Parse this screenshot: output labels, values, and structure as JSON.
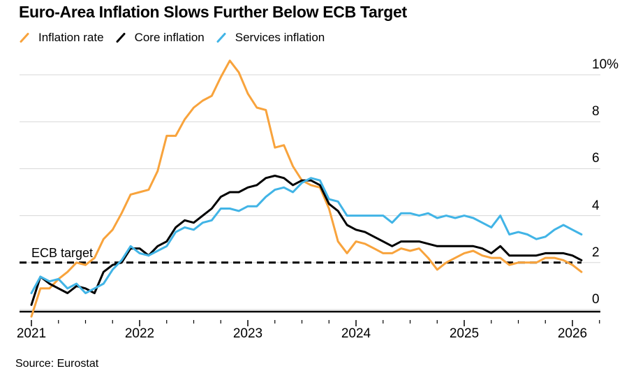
{
  "header": {
    "title": "Euro-Area Inflation Slows Further Below ECB Target"
  },
  "footer": {
    "source": "Source: Eurostat"
  },
  "chart_data": {
    "type": "line",
    "title": "Euro-Area Inflation Slows Further Below ECB Target",
    "xlabel": "",
    "ylabel": "",
    "unit": "%",
    "frequency": "monthly",
    "x_start_month": "2020-12",
    "x_end_month": "2026-01",
    "x_tick_labels": [
      "2021",
      "2022",
      "2023",
      "2024",
      "2025",
      "2026"
    ],
    "y_tick_values": [
      0,
      2,
      4,
      6,
      8,
      10
    ],
    "y_tick_labels": [
      "0",
      "2",
      "4",
      "6",
      "8",
      "10%"
    ],
    "ylim": [
      -0.5,
      10.75
    ],
    "grid": "horizontal",
    "legend_position": "top-left",
    "target_line": {
      "label": "ECB target",
      "value": 2,
      "style": "dashed",
      "color": "#000000"
    },
    "series": [
      {
        "name": "Inflation rate",
        "color": "#F8A33C",
        "values": [
          -0.3,
          0.9,
          0.9,
          1.3,
          1.6,
          2.0,
          1.9,
          2.2,
          3.0,
          3.4,
          4.1,
          4.9,
          5.0,
          5.1,
          5.9,
          7.4,
          7.4,
          8.1,
          8.6,
          8.9,
          9.1,
          9.9,
          10.6,
          10.1,
          9.2,
          8.6,
          8.5,
          6.9,
          7.0,
          6.1,
          5.5,
          5.3,
          5.2,
          4.3,
          2.9,
          2.4,
          2.9,
          2.8,
          2.6,
          2.4,
          2.4,
          2.6,
          2.5,
          2.6,
          2.2,
          1.7,
          2.0,
          2.2,
          2.4,
          2.5,
          2.3,
          2.2,
          2.2,
          1.9,
          2.0,
          2.0,
          2.0,
          2.2,
          2.2,
          2.1,
          1.9,
          1.6
        ]
      },
      {
        "name": "Core inflation",
        "color": "#000000",
        "values": [
          0.2,
          1.4,
          1.1,
          0.9,
          0.7,
          1.0,
          0.9,
          0.7,
          1.6,
          1.9,
          2.0,
          2.6,
          2.6,
          2.3,
          2.7,
          2.9,
          3.5,
          3.8,
          3.7,
          4.0,
          4.3,
          4.8,
          5.0,
          5.0,
          5.2,
          5.3,
          5.6,
          5.7,
          5.6,
          5.3,
          5.5,
          5.5,
          5.3,
          4.5,
          4.2,
          3.6,
          3.4,
          3.3,
          3.1,
          2.9,
          2.7,
          2.9,
          2.9,
          2.9,
          2.8,
          2.7,
          2.7,
          2.7,
          2.7,
          2.7,
          2.6,
          2.4,
          2.7,
          2.3,
          2.3,
          2.3,
          2.3,
          2.4,
          2.4,
          2.4,
          2.3,
          2.1
        ]
      },
      {
        "name": "Services inflation",
        "color": "#41B4E6",
        "values": [
          0.7,
          1.4,
          1.2,
          1.3,
          0.9,
          1.1,
          0.7,
          0.9,
          1.1,
          1.7,
          2.1,
          2.7,
          2.4,
          2.3,
          2.5,
          2.7,
          3.3,
          3.5,
          3.4,
          3.7,
          3.8,
          4.3,
          4.3,
          4.2,
          4.4,
          4.4,
          4.8,
          5.1,
          5.2,
          5.0,
          5.4,
          5.6,
          5.5,
          4.7,
          4.6,
          4.0,
          4.0,
          4.0,
          4.0,
          4.0,
          3.7,
          4.1,
          4.1,
          4.0,
          4.1,
          3.9,
          4.0,
          3.9,
          4.0,
          3.9,
          3.7,
          3.5,
          4.0,
          3.2,
          3.3,
          3.2,
          3.0,
          3.1,
          3.4,
          3.6,
          3.4,
          3.2
        ]
      }
    ]
  }
}
